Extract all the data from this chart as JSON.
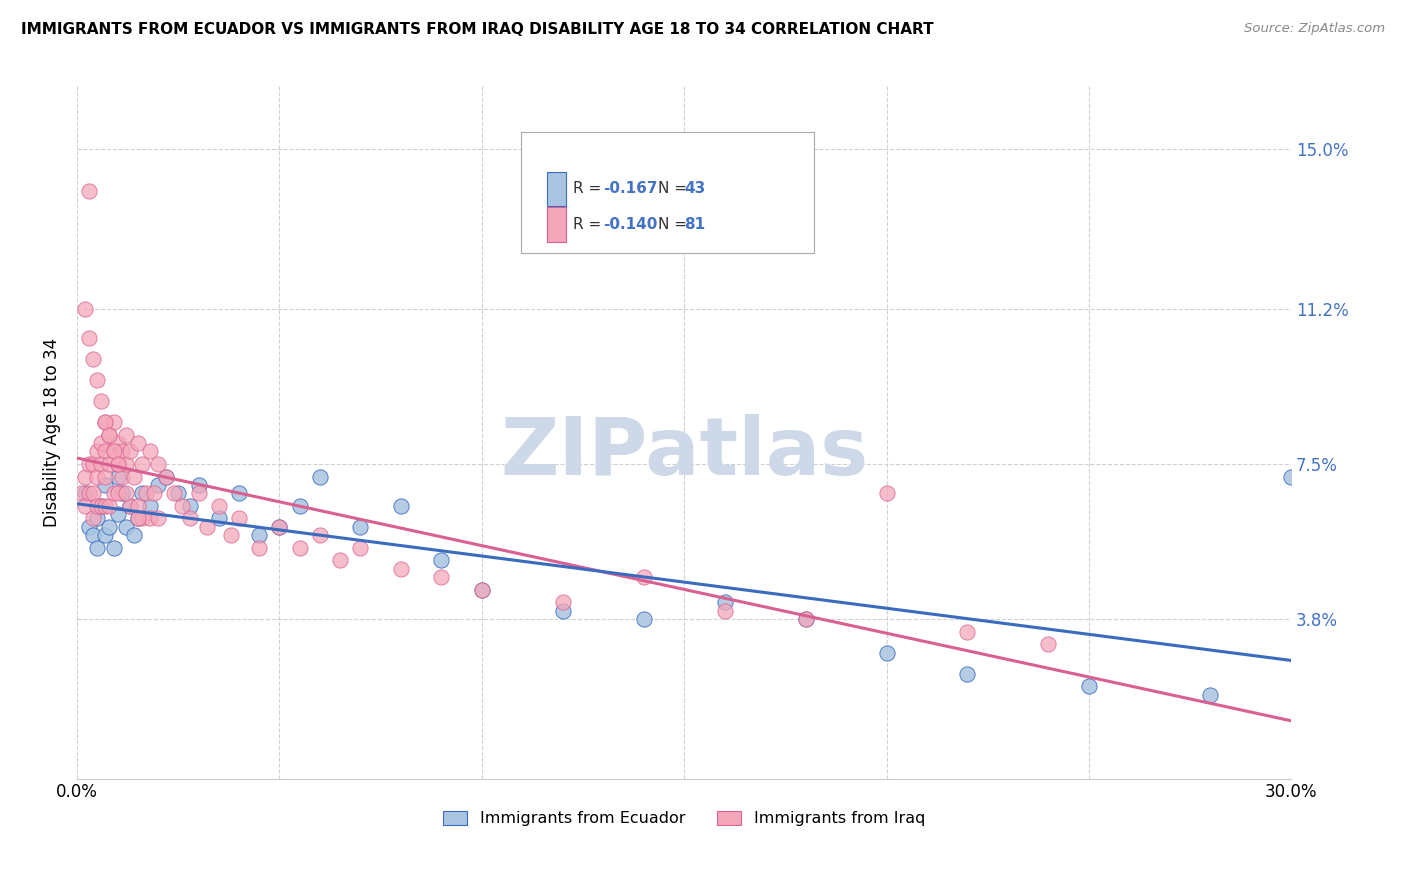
{
  "title": "IMMIGRANTS FROM ECUADOR VS IMMIGRANTS FROM IRAQ DISABILITY AGE 18 TO 34 CORRELATION CHART",
  "source": "Source: ZipAtlas.com",
  "ylabel": "Disability Age 18 to 34",
  "ytick_labels": [
    "3.8%",
    "7.5%",
    "11.2%",
    "15.0%"
  ],
  "ytick_values": [
    0.038,
    0.075,
    0.112,
    0.15
  ],
  "xlim": [
    0.0,
    0.3
  ],
  "ylim": [
    0.0,
    0.165
  ],
  "legend_label1": "Immigrants from Ecuador",
  "legend_label2": "Immigrants from Iraq",
  "r1": -0.167,
  "n1": 43,
  "r2": -0.14,
  "n2": 81,
  "color_ecuador": "#a8c4e0",
  "color_iraq": "#f4a7b9",
  "color_trendline_ecuador": "#3a6bbf",
  "color_trendline_iraq": "#d96090",
  "watermark": "ZIPatlas",
  "watermark_color": "#cdd8e8",
  "ecuador_x": [
    0.002,
    0.003,
    0.004,
    0.005,
    0.005,
    0.006,
    0.007,
    0.007,
    0.008,
    0.009,
    0.01,
    0.01,
    0.011,
    0.012,
    0.013,
    0.014,
    0.015,
    0.016,
    0.018,
    0.02,
    0.022,
    0.025,
    0.028,
    0.03,
    0.035,
    0.04,
    0.045,
    0.05,
    0.055,
    0.06,
    0.07,
    0.08,
    0.09,
    0.1,
    0.12,
    0.14,
    0.16,
    0.18,
    0.2,
    0.22,
    0.25,
    0.28,
    0.3
  ],
  "ecuador_y": [
    0.068,
    0.06,
    0.058,
    0.055,
    0.062,
    0.065,
    0.058,
    0.07,
    0.06,
    0.055,
    0.063,
    0.072,
    0.068,
    0.06,
    0.065,
    0.058,
    0.062,
    0.068,
    0.065,
    0.07,
    0.072,
    0.068,
    0.065,
    0.07,
    0.062,
    0.068,
    0.058,
    0.06,
    0.065,
    0.072,
    0.06,
    0.065,
    0.052,
    0.045,
    0.04,
    0.038,
    0.042,
    0.038,
    0.03,
    0.025,
    0.022,
    0.02,
    0.072
  ],
  "iraq_x": [
    0.001,
    0.002,
    0.002,
    0.003,
    0.003,
    0.003,
    0.004,
    0.004,
    0.004,
    0.005,
    0.005,
    0.005,
    0.006,
    0.006,
    0.006,
    0.007,
    0.007,
    0.007,
    0.007,
    0.008,
    0.008,
    0.008,
    0.009,
    0.009,
    0.009,
    0.01,
    0.01,
    0.01,
    0.011,
    0.011,
    0.012,
    0.012,
    0.013,
    0.013,
    0.014,
    0.015,
    0.015,
    0.016,
    0.016,
    0.017,
    0.018,
    0.018,
    0.019,
    0.02,
    0.02,
    0.022,
    0.024,
    0.026,
    0.028,
    0.03,
    0.032,
    0.035,
    0.038,
    0.04,
    0.045,
    0.05,
    0.055,
    0.06,
    0.065,
    0.07,
    0.08,
    0.09,
    0.1,
    0.12,
    0.14,
    0.16,
    0.18,
    0.2,
    0.22,
    0.24,
    0.002,
    0.003,
    0.004,
    0.005,
    0.006,
    0.007,
    0.008,
    0.009,
    0.01,
    0.012,
    0.015
  ],
  "iraq_y": [
    0.068,
    0.072,
    0.065,
    0.075,
    0.14,
    0.068,
    0.075,
    0.068,
    0.062,
    0.078,
    0.072,
    0.065,
    0.08,
    0.075,
    0.065,
    0.085,
    0.078,
    0.072,
    0.065,
    0.082,
    0.075,
    0.065,
    0.085,
    0.078,
    0.068,
    0.08,
    0.075,
    0.068,
    0.078,
    0.072,
    0.082,
    0.075,
    0.078,
    0.065,
    0.072,
    0.08,
    0.065,
    0.075,
    0.062,
    0.068,
    0.078,
    0.062,
    0.068,
    0.075,
    0.062,
    0.072,
    0.068,
    0.065,
    0.062,
    0.068,
    0.06,
    0.065,
    0.058,
    0.062,
    0.055,
    0.06,
    0.055,
    0.058,
    0.052,
    0.055,
    0.05,
    0.048,
    0.045,
    0.042,
    0.048,
    0.04,
    0.038,
    0.068,
    0.035,
    0.032,
    0.112,
    0.105,
    0.1,
    0.095,
    0.09,
    0.085,
    0.082,
    0.078,
    0.075,
    0.068,
    0.062
  ]
}
